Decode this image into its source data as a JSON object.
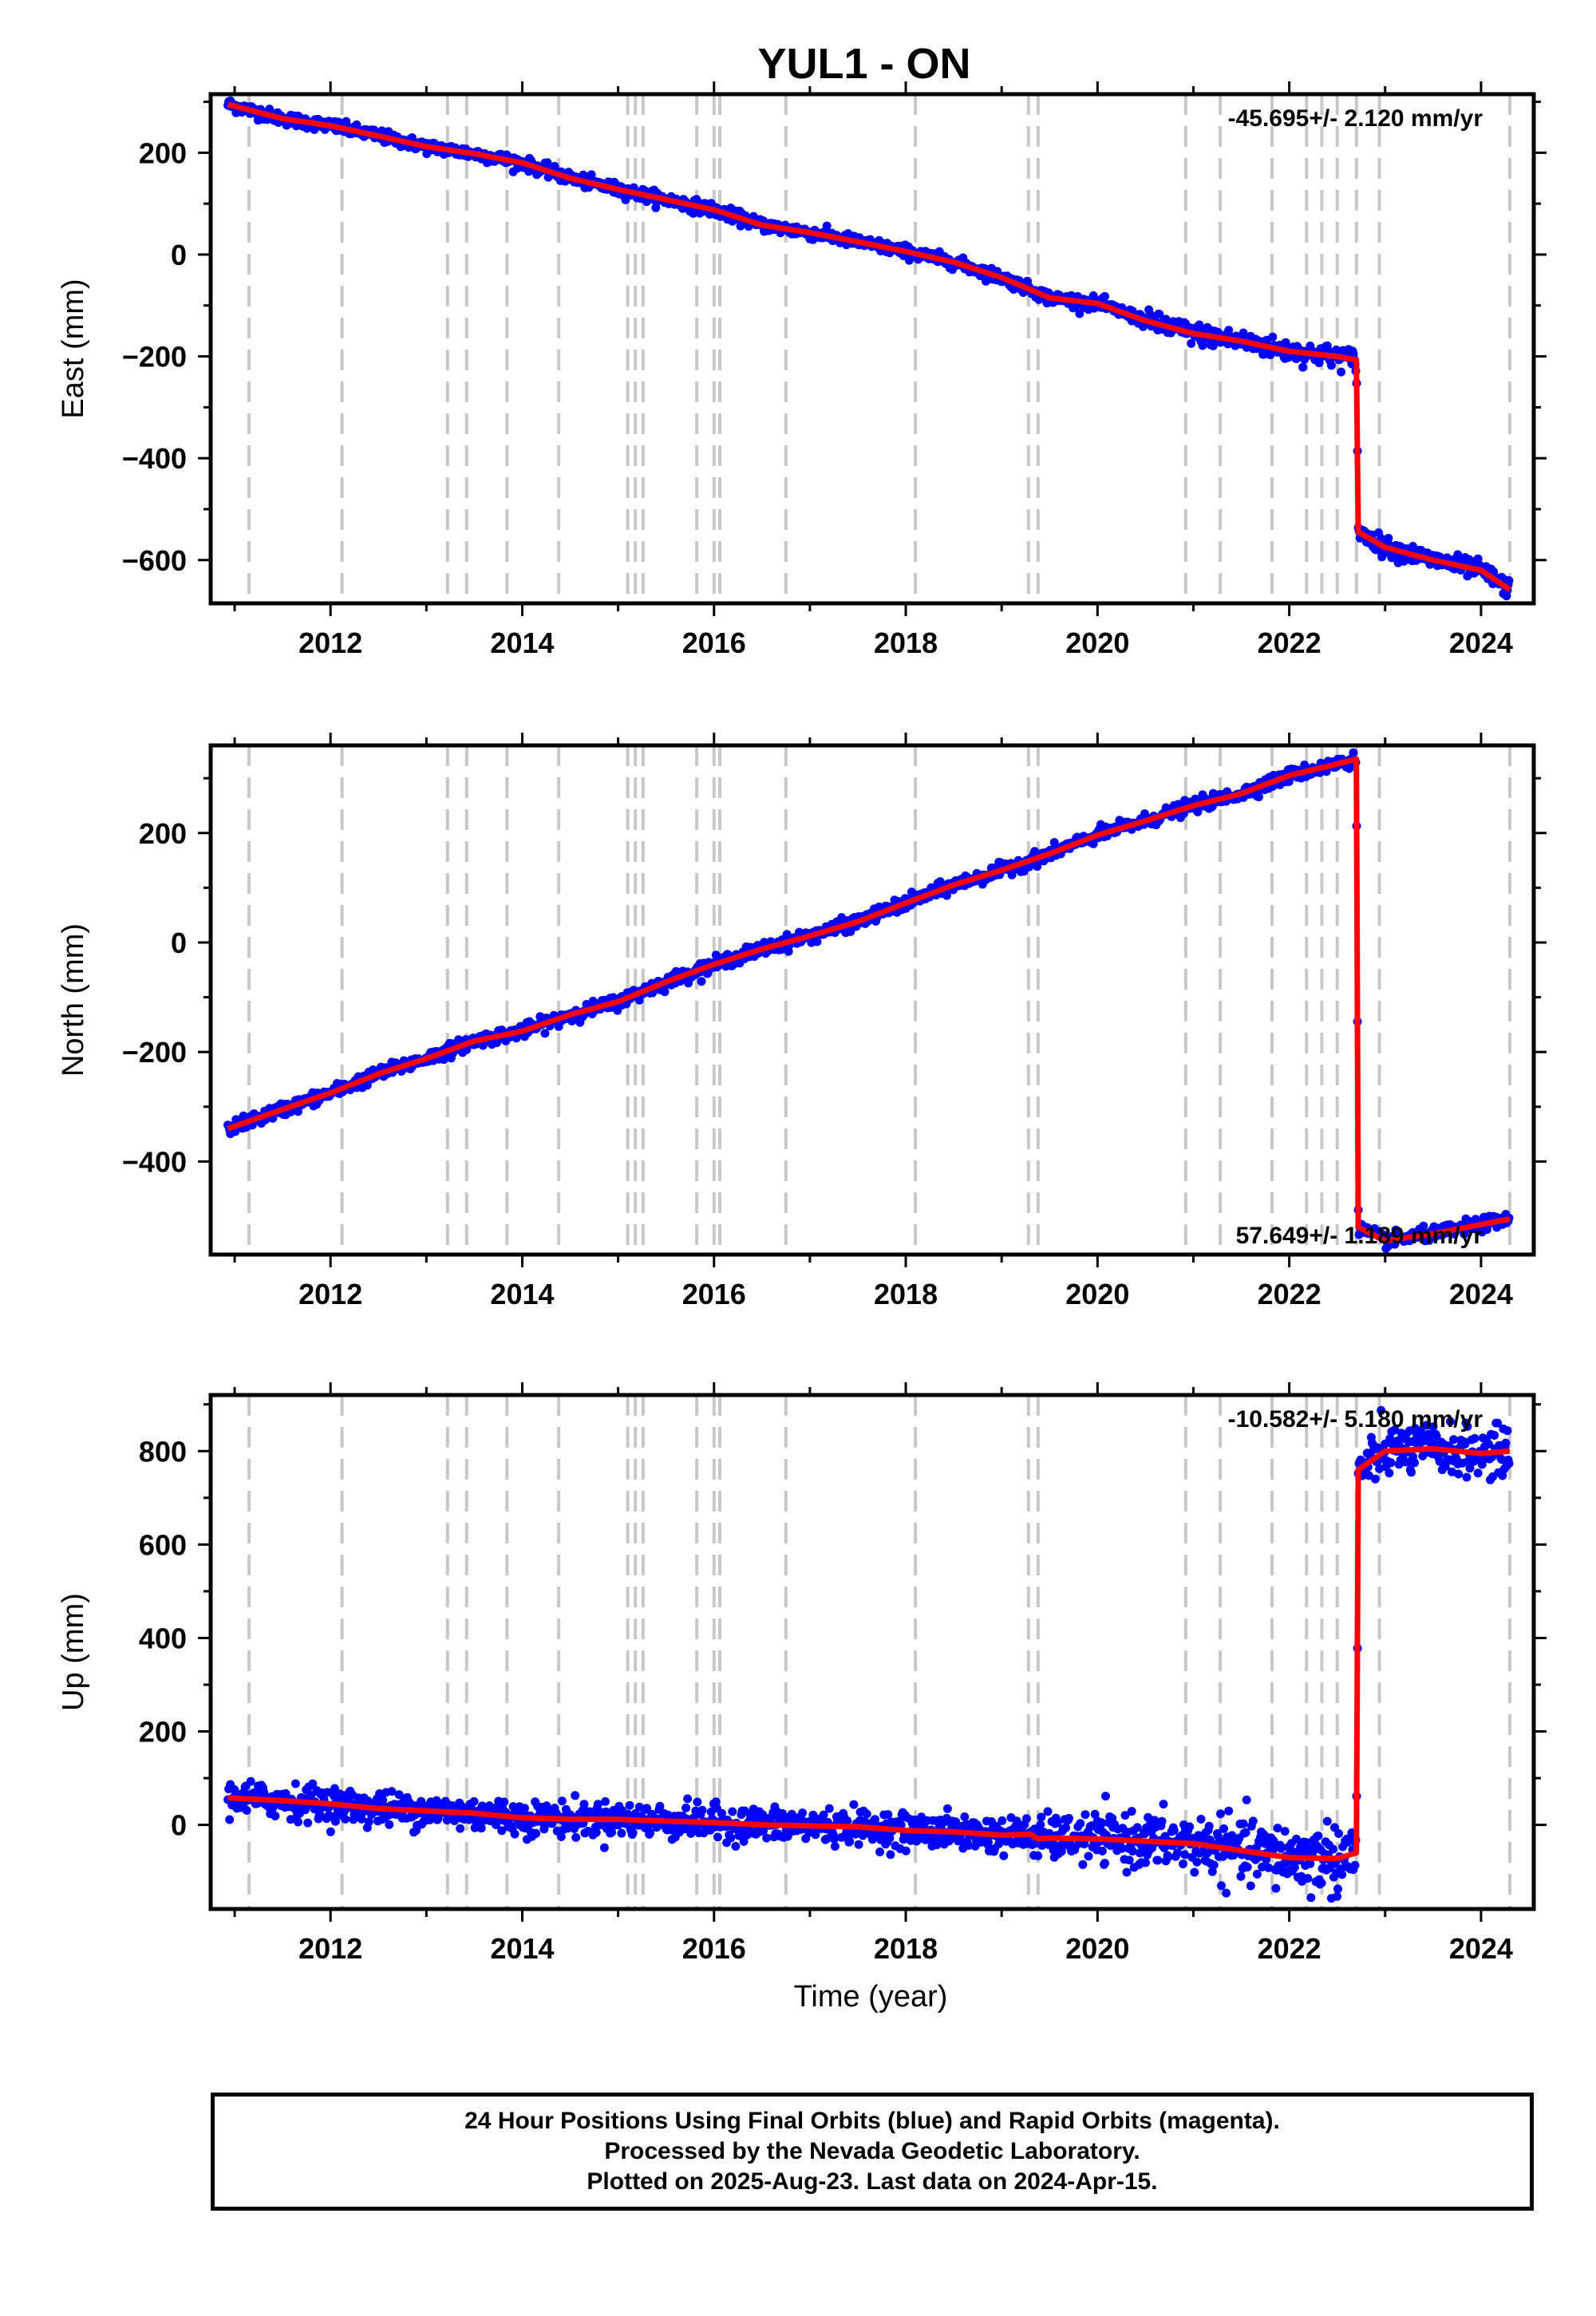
{
  "chart_data": {
    "type": "scatter",
    "title": "YUL1 - ON",
    "xlabel": "Time (year)",
    "xlim": [
      2010.75,
      2024.55
    ],
    "xticks": [
      2012,
      2014,
      2016,
      2018,
      2020,
      2022,
      2024
    ],
    "event_lines": [
      2011.15,
      2012.12,
      2013.22,
      2013.42,
      2013.84,
      2014.38,
      2015.1,
      2015.18,
      2015.26,
      2015.82,
      2016.0,
      2016.06,
      2016.75,
      2018.1,
      2019.28,
      2019.38,
      2020.92,
      2021.28,
      2021.82,
      2022.18,
      2022.34,
      2022.5,
      2022.7,
      2022.94,
      2024.3
    ],
    "panels": [
      {
        "name": "east",
        "ylabel": "East (mm)",
        "ylim": [
          -685,
          315
        ],
        "yticks": [
          200,
          0,
          -200,
          -400,
          -600
        ],
        "tick_labels": [
          "200",
          "0",
          "−200",
          "−400",
          "−600"
        ],
        "rate": "-45.695+/- 2.120 mm/yr",
        "rate_position": "top-right",
        "model_x": [
          2010.93,
          2011.5,
          2012.0,
          2012.5,
          2013.0,
          2013.5,
          2014.0,
          2014.5,
          2015.0,
          2015.5,
          2016.0,
          2016.5,
          2017.0,
          2017.5,
          2018.0,
          2018.5,
          2019.0,
          2019.5,
          2020.0,
          2020.5,
          2021.0,
          2021.5,
          2022.0,
          2022.5,
          2022.7,
          2022.72,
          2023.0,
          2023.5,
          2024.0,
          2024.3
        ],
        "model_y": [
          295,
          267,
          253,
          233,
          212,
          198,
          180,
          150,
          128,
          108,
          88,
          58,
          43,
          25,
          6,
          -15,
          -45,
          -85,
          -96,
          -130,
          -155,
          -170,
          -190,
          -200,
          -207,
          -545,
          -575,
          -600,
          -620,
          -658
        ],
        "scatter_sigma": 6
      },
      {
        "name": "north",
        "ylabel": "North (mm)",
        "ylim": [
          -570,
          360
        ],
        "yticks": [
          200,
          0,
          -200,
          -400
        ],
        "tick_labels": [
          "200",
          "0",
          "−200",
          "−400"
        ],
        "rate": "57.649+/- 1.189 mm/yr",
        "rate_position": "bottom-right",
        "model_x": [
          2010.93,
          2011.5,
          2012.0,
          2012.5,
          2013.0,
          2013.5,
          2014.0,
          2014.5,
          2015.0,
          2015.5,
          2016.0,
          2016.5,
          2017.0,
          2017.5,
          2018.0,
          2018.5,
          2019.0,
          2019.5,
          2020.0,
          2020.5,
          2021.0,
          2021.5,
          2022.0,
          2022.5,
          2022.7,
          2022.72,
          2023.0,
          2023.5,
          2024.0,
          2024.3
        ],
        "model_y": [
          -340,
          -305,
          -275,
          -240,
          -212,
          -180,
          -162,
          -132,
          -108,
          -72,
          -40,
          -12,
          12,
          38,
          72,
          105,
          132,
          162,
          196,
          222,
          250,
          272,
          305,
          326,
          335,
          -520,
          -545,
          -532,
          -515,
          -505
        ],
        "scatter_sigma": 6
      },
      {
        "name": "up",
        "ylabel": "Up (mm)",
        "ylim": [
          -180,
          920
        ],
        "yticks": [
          800,
          600,
          400,
          200,
          0
        ],
        "tick_labels": [
          "800",
          "600",
          "400",
          "200",
          "0"
        ],
        "rate": "-10.582+/- 5.180 mm/yr",
        "rate_position": "top-right",
        "model_x": [
          2010.93,
          2011.5,
          2012.0,
          2012.5,
          2013.0,
          2013.5,
          2014.0,
          2014.5,
          2015.0,
          2015.5,
          2016.0,
          2016.5,
          2017.0,
          2017.5,
          2018.0,
          2018.5,
          2019.0,
          2019.3,
          2019.38,
          2019.5,
          2020.0,
          2020.5,
          2021.0,
          2021.5,
          2022.0,
          2022.5,
          2022.7,
          2022.72,
          2023.0,
          2023.5,
          2024.0,
          2024.3
        ],
        "model_y": [
          58,
          52,
          45,
          35,
          30,
          25,
          15,
          12,
          12,
          8,
          5,
          0,
          -2,
          -4,
          -12,
          -15,
          -22,
          -20,
          -30,
          -28,
          -30,
          -35,
          -40,
          -55,
          -70,
          -72,
          -60,
          760,
          800,
          805,
          795,
          800
        ],
        "scatter_sigma": 18
      }
    ],
    "series": [
      {
        "name": "Final Orbits",
        "color": "#0000ff"
      },
      {
        "name": "Rapid Orbits",
        "color": "#ff00ff"
      },
      {
        "name": "model",
        "color": "#ff0000"
      }
    ]
  },
  "footer": {
    "line1": "24 Hour Positions Using Final Orbits (blue) and Rapid Orbits (magenta).",
    "line2": "Processed by the Nevada Geodetic Laboratory.",
    "line3": "Plotted on 2025-Aug-23. Last data on 2024-Apr-15."
  }
}
